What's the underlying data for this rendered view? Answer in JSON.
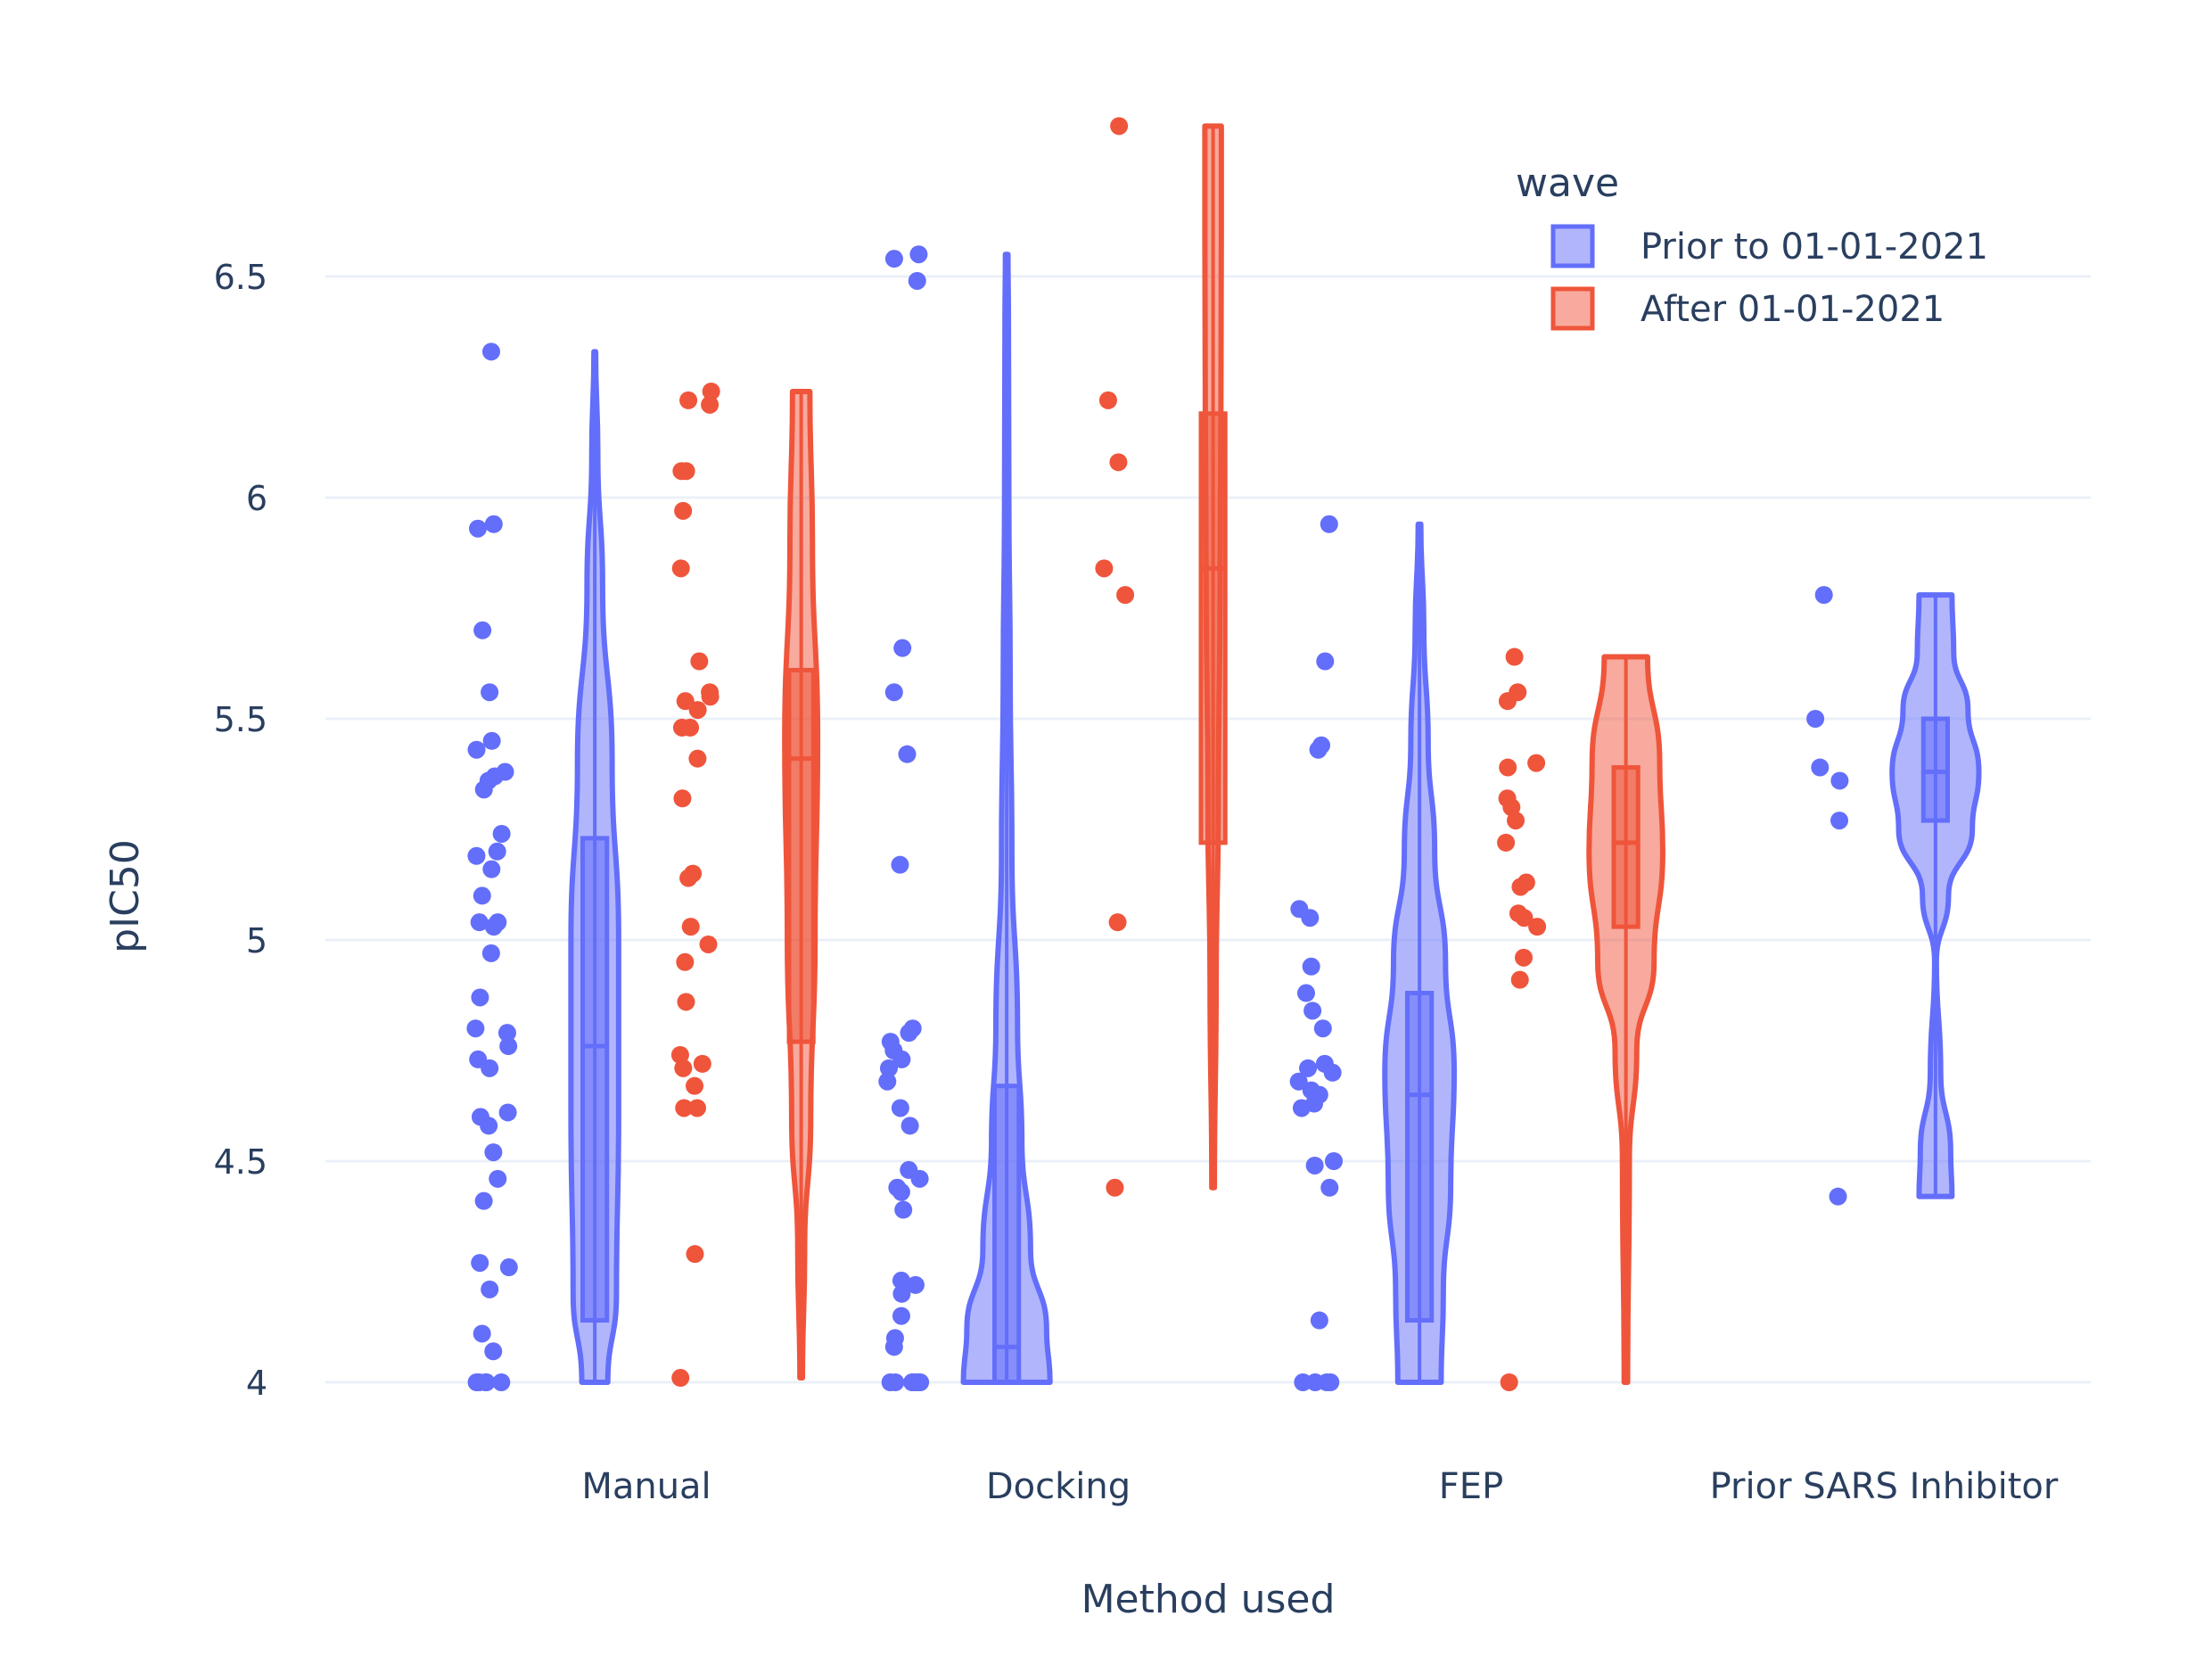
{
  "chart_data": {
    "type": "violin",
    "title": "",
    "xlabel": "Method used",
    "ylabel": "pIC50",
    "categories": [
      "Manual",
      "Docking",
      "FEP",
      "Prior SARS Inhibitor"
    ],
    "yticks": [
      "4",
      "4.5",
      "5",
      "5.5",
      "6",
      "6.5"
    ],
    "yrange": [
      3.92,
      6.87
    ],
    "grid": true,
    "legend": {
      "title": "wave",
      "position": "top-right"
    },
    "series": [
      {
        "name": "Prior to 01-01-2021",
        "color": "#636efa",
        "groups": [
          {
            "category": "Manual",
            "points": [
              6.33,
              5.94,
              5.93,
              5.7,
              5.56,
              5.45,
              5.43,
              5.38,
              5.37,
              5.36,
              5.34,
              5.24,
              5.2,
              5.19,
              5.16,
              5.1,
              5.04,
              5.04,
              5.03,
              4.97,
              4.87,
              4.8,
              4.79,
              4.76,
              4.73,
              4.71,
              4.61,
              4.6,
              4.58,
              4.52,
              4.46,
              4.41,
              4.27,
              4.26,
              4.21,
              4.11,
              4.07,
              4.0,
              4.0,
              4.0,
              4.0,
              4.0,
              4.0
            ],
            "box": {
              "lower": 4.14,
              "median": 4.76,
              "upper": 5.23
            },
            "range": [
              4.0,
              6.33
            ],
            "density": [
              [
                4.0,
                0.3
              ],
              [
                4.2,
                0.5
              ],
              [
                4.6,
                0.55
              ],
              [
                5.0,
                0.55
              ],
              [
                5.4,
                0.4
              ],
              [
                5.8,
                0.18
              ],
              [
                6.1,
                0.07
              ],
              [
                6.33,
                0.02
              ]
            ]
          },
          {
            "category": "Docking",
            "points": [
              6.55,
              6.54,
              6.49,
              5.66,
              5.56,
              5.42,
              5.17,
              4.8,
              4.79,
              4.77,
              4.75,
              4.73,
              4.71,
              4.68,
              4.62,
              4.58,
              4.48,
              4.46,
              4.44,
              4.43,
              4.39,
              4.23,
              4.22,
              4.2,
              4.15,
              4.1,
              4.08,
              4.0,
              4.0,
              4.0,
              4.0,
              4.0,
              4.0,
              4.0
            ],
            "box": {
              "lower": 4.0,
              "median": 4.08,
              "upper": 4.67
            },
            "range": [
              4.0,
              6.55
            ],
            "density": [
              [
                4.0,
                1.0
              ],
              [
                4.12,
                0.92
              ],
              [
                4.3,
                0.55
              ],
              [
                4.55,
                0.35
              ],
              [
                4.8,
                0.25
              ],
              [
                5.2,
                0.12
              ],
              [
                5.6,
                0.08
              ],
              [
                6.0,
                0.05
              ],
              [
                6.4,
                0.04
              ],
              [
                6.55,
                0.03
              ]
            ]
          },
          {
            "category": "FEP",
            "points": [
              5.94,
              5.63,
              5.44,
              5.43,
              5.07,
              5.05,
              4.94,
              4.88,
              4.84,
              4.8,
              4.72,
              4.71,
              4.7,
              4.68,
              4.66,
              4.65,
              4.63,
              4.62,
              4.5,
              4.49,
              4.44,
              4.14,
              4.0,
              4.0,
              4.0,
              4.0
            ],
            "box": {
              "lower": 4.14,
              "median": 4.65,
              "upper": 4.88
            },
            "range": [
              4.0,
              5.94
            ],
            "density": [
              [
                4.0,
                0.5
              ],
              [
                4.2,
                0.55
              ],
              [
                4.45,
                0.72
              ],
              [
                4.7,
                0.8
              ],
              [
                4.95,
                0.6
              ],
              [
                5.2,
                0.35
              ],
              [
                5.45,
                0.2
              ],
              [
                5.7,
                0.1
              ],
              [
                5.94,
                0.03
              ]
            ]
          },
          {
            "category": "Prior SARS Inhibitor",
            "points": [
              5.78,
              5.5,
              5.39,
              5.36,
              5.27,
              4.42
            ],
            "box": {
              "lower": 5.27,
              "median": 5.38,
              "upper": 5.5
            },
            "range": [
              4.42,
              5.78
            ],
            "density": [
              [
                4.42,
                0.38
              ],
              [
                4.52,
                0.35
              ],
              [
                4.7,
                0.12
              ],
              [
                4.95,
                0.02
              ],
              [
                5.1,
                0.3
              ],
              [
                5.25,
                0.85
              ],
              [
                5.38,
                1.0
              ],
              [
                5.52,
                0.75
              ],
              [
                5.65,
                0.42
              ],
              [
                5.78,
                0.38
              ]
            ]
          }
        ]
      },
      {
        "name": "After 01-01-2021",
        "color": "#ef553b",
        "groups": [
          {
            "category": "Manual",
            "points": [
              6.24,
              6.22,
              6.21,
              6.06,
              6.06,
              5.97,
              5.84,
              5.63,
              5.56,
              5.55,
              5.54,
              5.52,
              5.48,
              5.48,
              5.41,
              5.32,
              5.15,
              5.14,
              5.03,
              4.99,
              4.95,
              4.86,
              4.74,
              4.72,
              4.71,
              4.67,
              4.62,
              4.62,
              4.29,
              4.01
            ],
            "box": {
              "lower": 4.77,
              "median": 5.41,
              "upper": 5.61
            },
            "range": [
              4.01,
              6.24
            ],
            "density": [
              [
                4.01,
                0.03
              ],
              [
                4.3,
                0.08
              ],
              [
                4.6,
                0.22
              ],
              [
                5.0,
                0.32
              ],
              [
                5.45,
                0.38
              ],
              [
                5.9,
                0.26
              ],
              [
                6.24,
                0.2
              ]
            ]
          },
          {
            "category": "Docking",
            "points": [
              6.84,
              6.22,
              6.08,
              5.84,
              5.78,
              5.04,
              4.44
            ],
            "box": {
              "lower": 5.22,
              "median": 5.84,
              "upper": 6.19
            },
            "range": [
              4.44,
              6.84
            ],
            "density": [
              [
                4.44,
                0.03
              ],
              [
                4.9,
                0.07
              ],
              [
                5.3,
                0.12
              ],
              [
                5.8,
                0.16
              ],
              [
                6.2,
                0.18
              ],
              [
                6.6,
                0.19
              ],
              [
                6.84,
                0.19
              ]
            ]
          },
          {
            "category": "FEP",
            "points": [
              5.64,
              5.56,
              5.54,
              5.4,
              5.39,
              5.32,
              5.3,
              5.27,
              5.22,
              5.13,
              5.12,
              5.06,
              5.05,
              5.03,
              4.96,
              4.91,
              4.0
            ],
            "box": {
              "lower": 5.03,
              "median": 5.22,
              "upper": 5.39
            },
            "range": [
              4.0,
              5.64
            ],
            "density": [
              [
                4.0,
                0.04
              ],
              [
                4.5,
                0.08
              ],
              [
                4.75,
                0.25
              ],
              [
                4.95,
                0.65
              ],
              [
                5.2,
                0.85
              ],
              [
                5.4,
                0.78
              ],
              [
                5.64,
                0.5
              ]
            ]
          }
        ]
      }
    ]
  }
}
